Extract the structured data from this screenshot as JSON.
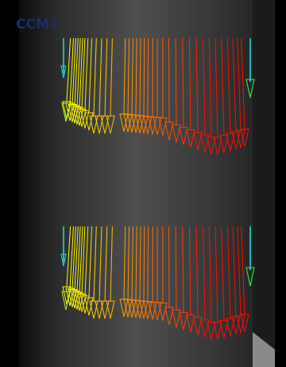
{
  "logo": "CCM+"
}
